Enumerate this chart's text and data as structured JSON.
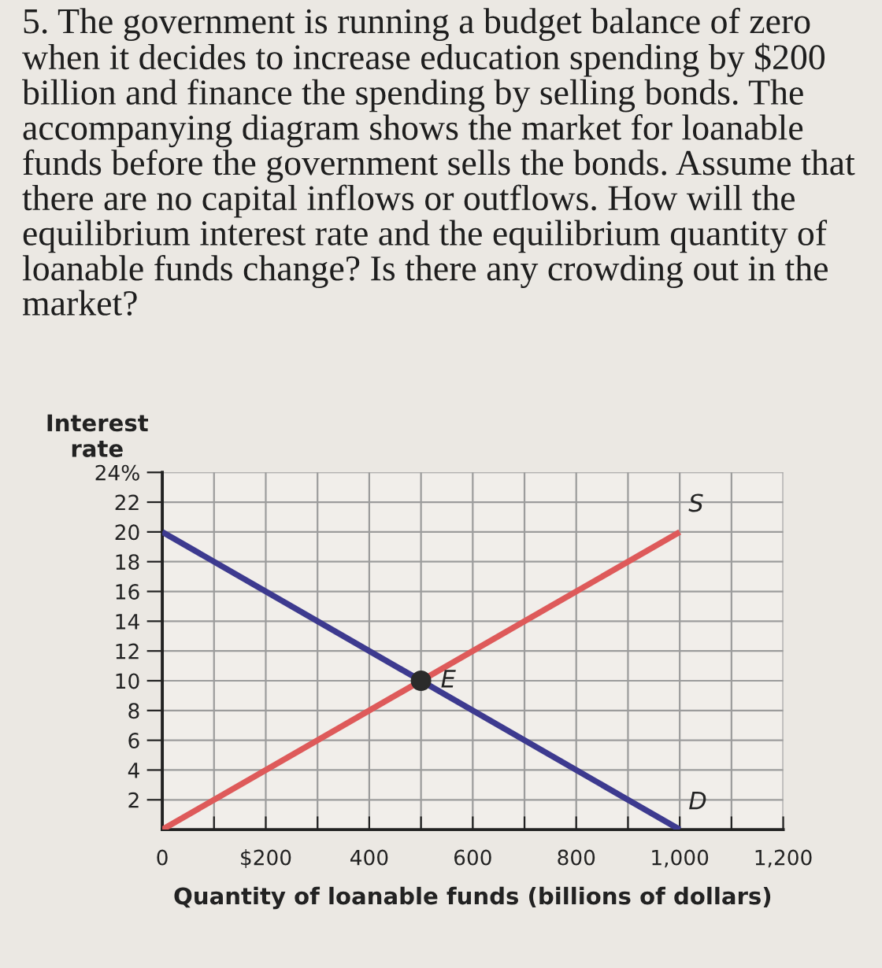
{
  "chart_data": {
    "type": "line",
    "title": "5. The government is running a budget balance of zero when it decides to increase education spending by $200 billion and finance the spending by selling bonds. The accompanying diagram shows the market for loanable funds before the government sells the bonds. Assume that there are no capital inflows or outflows. How will the equilibrium interest rate and the equilibrium quantity of loanable funds change? Is there any crowding out in the market?",
    "xlabel": "Quantity of loanable funds (billions of dollars)",
    "ylabel": "Interest\nrate",
    "xlim": [
      0,
      1200
    ],
    "ylim": [
      0,
      24
    ],
    "xticks": [
      {
        "value": 0,
        "label": "0"
      },
      {
        "value": 100,
        "label": null
      },
      {
        "value": 200,
        "label": "$200"
      },
      {
        "value": 300,
        "label": null
      },
      400,
      {
        "value": 500,
        "label": null
      },
      600,
      {
        "value": 700,
        "label": null
      },
      800,
      {
        "value": 900,
        "label": null
      },
      {
        "value": 1000,
        "label": "1,000"
      },
      {
        "value": 1100,
        "label": null
      },
      {
        "value": 1200,
        "label": "1,200"
      }
    ],
    "yticks": [
      2,
      4,
      6,
      8,
      10,
      12,
      14,
      16,
      18,
      20,
      22,
      {
        "value": 24,
        "label": "24%"
      }
    ],
    "grid": true,
    "series": [
      {
        "name": "D",
        "color": "#3d3a8f",
        "x": [
          0,
          1000
        ],
        "values": [
          20,
          0
        ]
      },
      {
        "name": "S",
        "color": "#de5a5a",
        "x": [
          0,
          1000
        ],
        "values": [
          0,
          20
        ]
      },
      {
        "name": "E",
        "type": "scatter",
        "marker": "circle",
        "color": "#2b2b2b",
        "x": [
          500
        ],
        "values": [
          10
        ]
      }
    ]
  }
}
